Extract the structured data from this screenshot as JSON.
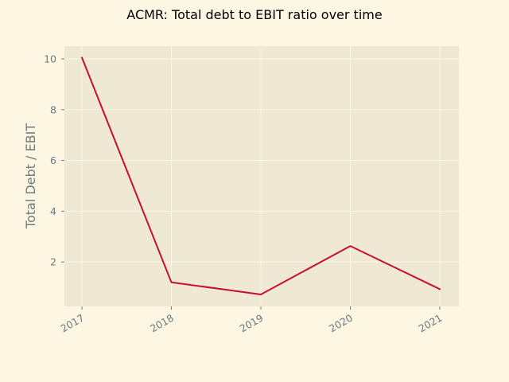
{
  "chart_data": {
    "type": "line",
    "title": "ACMR: Total debt to EBIT ratio over time",
    "xlabel": "",
    "ylabel": "Total Debt / EBIT",
    "categories": [
      "2017",
      "2018",
      "2019",
      "2020",
      "2021"
    ],
    "series": [
      {
        "values": [
          10.05,
          1.2,
          0.72,
          2.63,
          0.93
        ],
        "color": "#c8102e"
      }
    ],
    "yticks": [
      2,
      4,
      6,
      8,
      10
    ],
    "ylim": [
      0.25,
      10.5
    ],
    "grid": true,
    "colors": {
      "page_background": "#fdf6e3",
      "plot_background": "#eee8d5",
      "grid": "#fdf6e3",
      "tick_text": "#6c7a7f",
      "line": "#c8102e"
    }
  }
}
